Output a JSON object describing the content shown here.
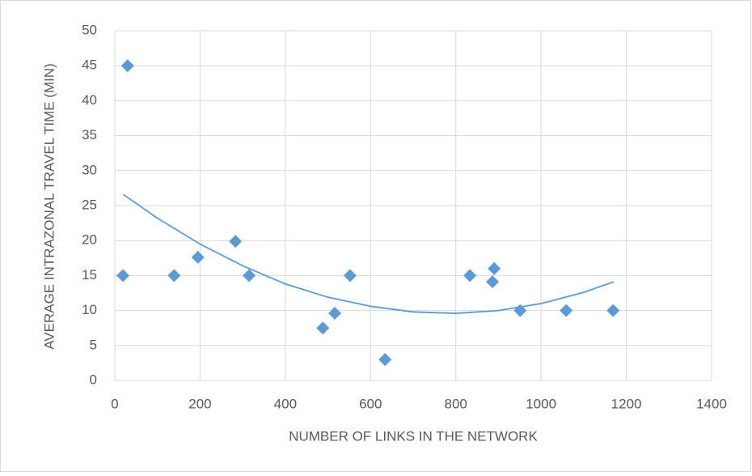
{
  "chart_data": {
    "type": "scatter",
    "x_label": "NUMBER OF LINKS IN THE NETWORK",
    "y_label": "AVERAGE INTRAZONAL TRAVEL TIME (MIN)",
    "series": [
      {
        "color": "#5b9bd5",
        "x": [
          19,
          30,
          139,
          195,
          283,
          315,
          488,
          516,
          552,
          634,
          833,
          890,
          886,
          951,
          1059,
          1169
        ],
        "values": [
          15,
          45,
          15,
          17.6,
          19.9,
          15,
          7.5,
          9.6,
          15,
          3,
          15,
          16,
          14.1,
          10,
          10,
          10
        ]
      }
    ],
    "trendline": {
      "color": "#5b9bd5",
      "x": [
        20,
        100,
        200,
        300,
        400,
        500,
        600,
        700,
        800,
        900,
        1000,
        1100,
        1170
      ],
      "values": [
        26.6,
        23.2,
        19.5,
        16.4,
        13.8,
        11.9,
        10.6,
        9.8,
        9.6,
        10.0,
        11.0,
        12.6,
        14.1
      ]
    },
    "xlim": [
      0,
      1400
    ],
    "xticks": [
      0,
      200,
      400,
      600,
      800,
      1000,
      1200,
      1400
    ],
    "ylim": [
      0,
      50
    ],
    "yticks": [
      0,
      5,
      10,
      15,
      20,
      25,
      30,
      35,
      40,
      45,
      50
    ],
    "grid": true
  }
}
